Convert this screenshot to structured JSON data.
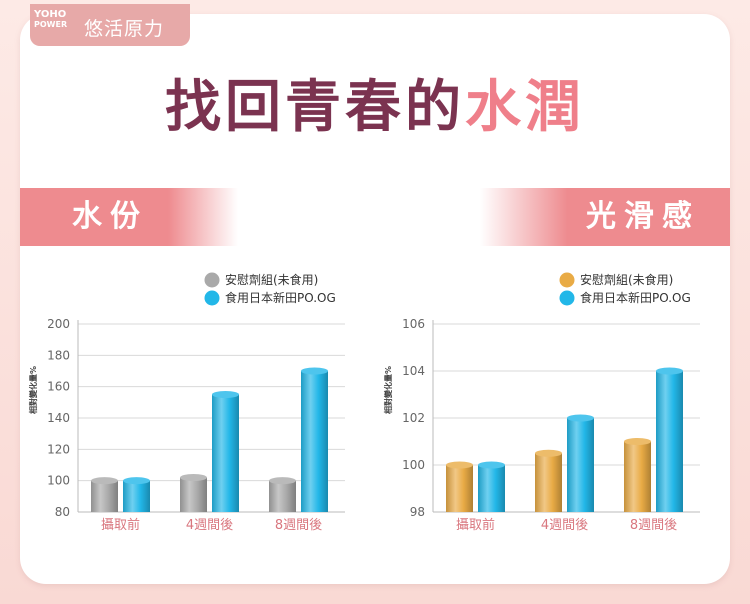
{
  "brand": {
    "logo_line1": "YOHO",
    "logo_line2": "POWER",
    "name": "悠活原力"
  },
  "headline": {
    "part1": "找回青春的",
    "part2": "水潤"
  },
  "sections": {
    "left_title": "水份",
    "right_title": "光滑感"
  },
  "colors": {
    "headline_dark": "#7b3350",
    "headline_pink": "#ef7f8a",
    "banner": "#ee8b8f",
    "placebo_gray": "#a9a9a9",
    "placebo_orange": "#e9ab45",
    "treatment_blue": "#22b7e8"
  },
  "chart_data": [
    {
      "type": "bar",
      "title": "水份",
      "ylabel": "相對變化量%",
      "xlabel": "",
      "categories": [
        "攝取前",
        "4週間後",
        "8週間後"
      ],
      "ylim": [
        80,
        200
      ],
      "yticks": [
        80,
        100,
        120,
        140,
        160,
        180,
        200
      ],
      "grid": true,
      "legend_position": "top-right",
      "series": [
        {
          "name": "安慰劑組(未食用)",
          "values": [
            100,
            102,
            100
          ],
          "color": "#a9a9a9"
        },
        {
          "name": "食用日本新田PO.OG",
          "values": [
            100,
            155,
            170
          ],
          "color": "#22b7e8"
        }
      ]
    },
    {
      "type": "bar",
      "title": "光滑感",
      "ylabel": "相對變化量%",
      "xlabel": "",
      "categories": [
        "攝取前",
        "4週間後",
        "8週間後"
      ],
      "ylim": [
        98,
        106
      ],
      "yticks": [
        98,
        100,
        102,
        104,
        106
      ],
      "grid": true,
      "legend_position": "top-right",
      "series": [
        {
          "name": "安慰劑組(未食用)",
          "values": [
            100,
            100.5,
            101
          ],
          "color": "#e9ab45"
        },
        {
          "name": "食用日本新田PO.OG",
          "values": [
            100,
            102,
            104
          ],
          "color": "#22b7e8"
        }
      ]
    }
  ]
}
